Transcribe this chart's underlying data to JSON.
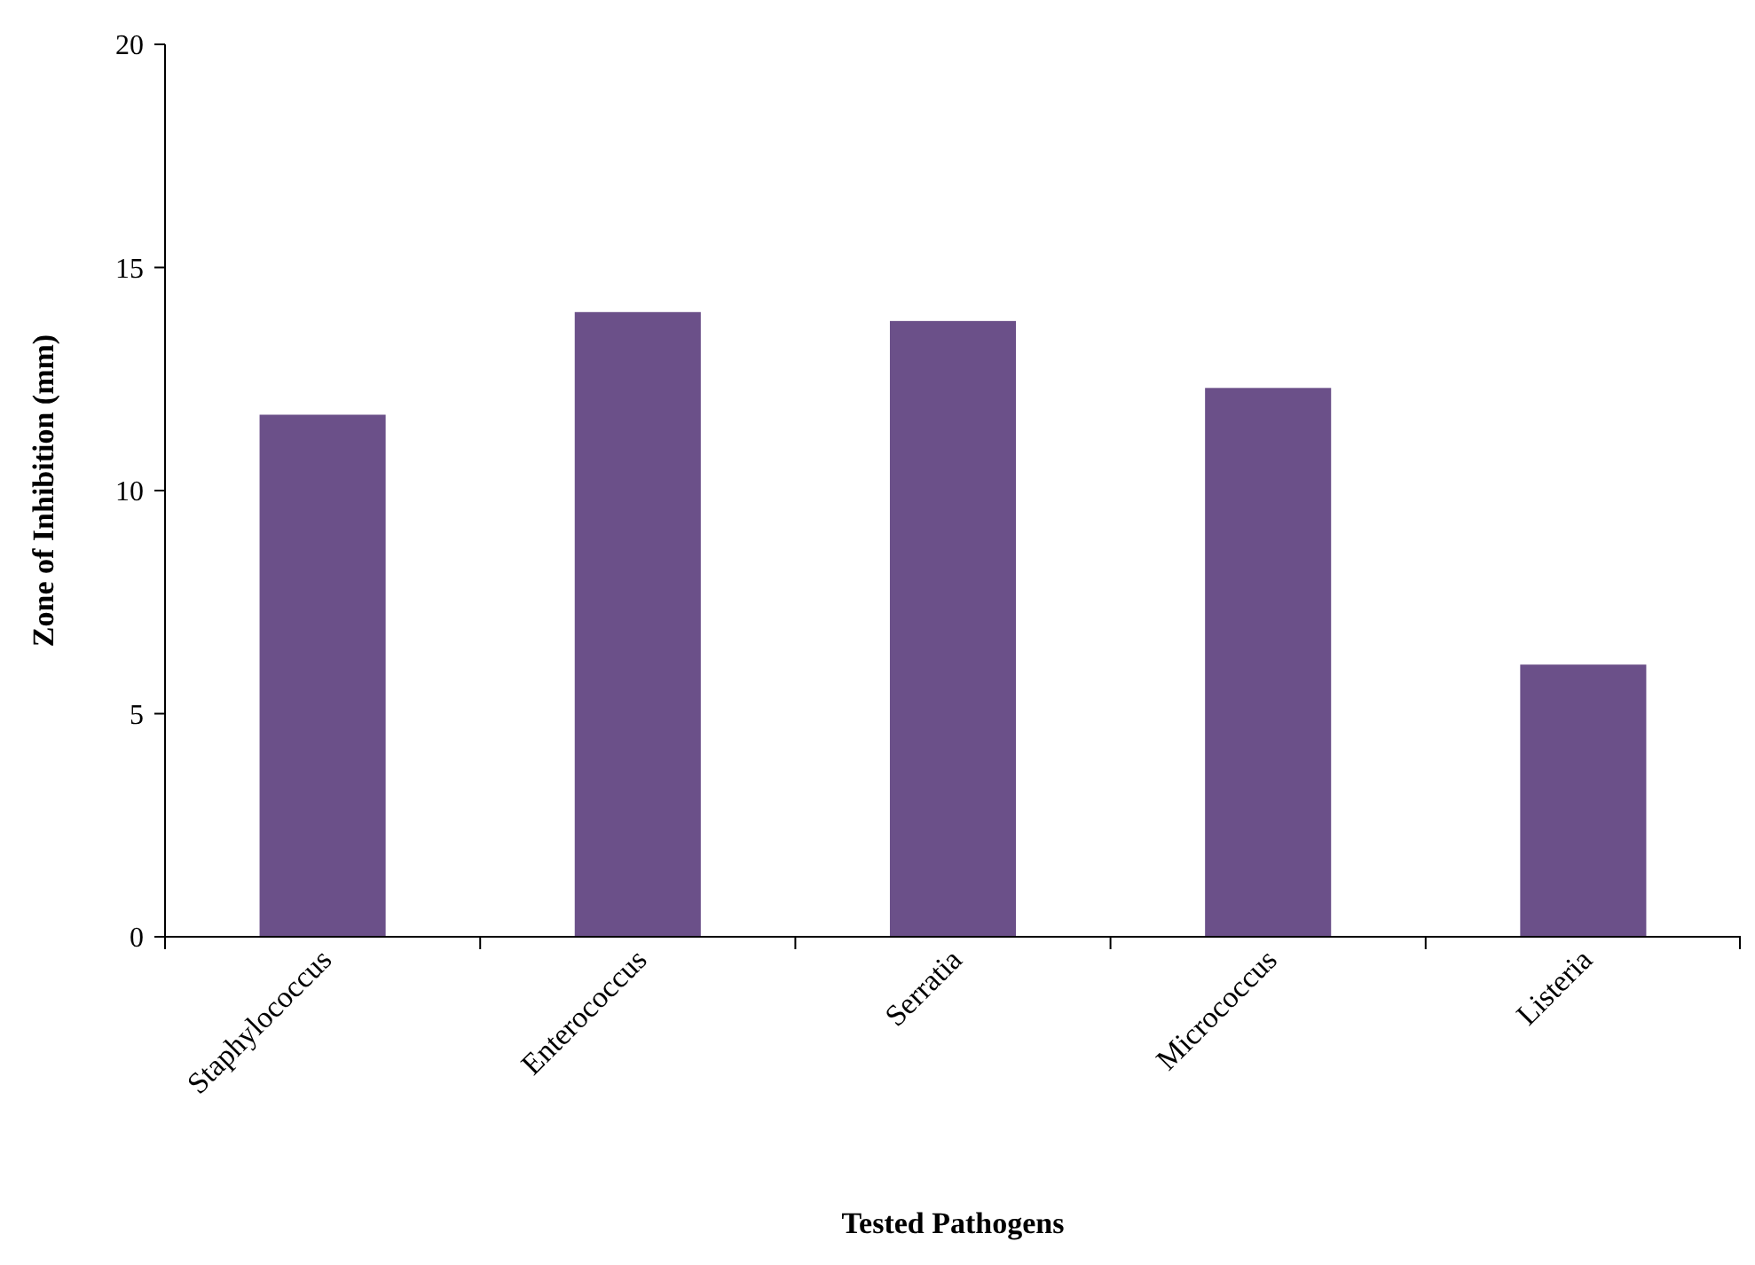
{
  "chart_data": {
    "type": "bar",
    "xlabel": "Tested Pathogens",
    "ylabel": "Zone of Inhibition (mm)",
    "categories": [
      "Staphylococcus",
      "Enterococcus",
      "Serratia",
      "Micrococcus",
      "Listeria"
    ],
    "values": [
      11.7,
      14.0,
      13.8,
      12.3,
      6.1
    ],
    "color": "#6b5089",
    "ylim": [
      0,
      20
    ],
    "yticks": [
      0,
      5,
      10,
      15,
      20
    ],
    "grid": false
  }
}
